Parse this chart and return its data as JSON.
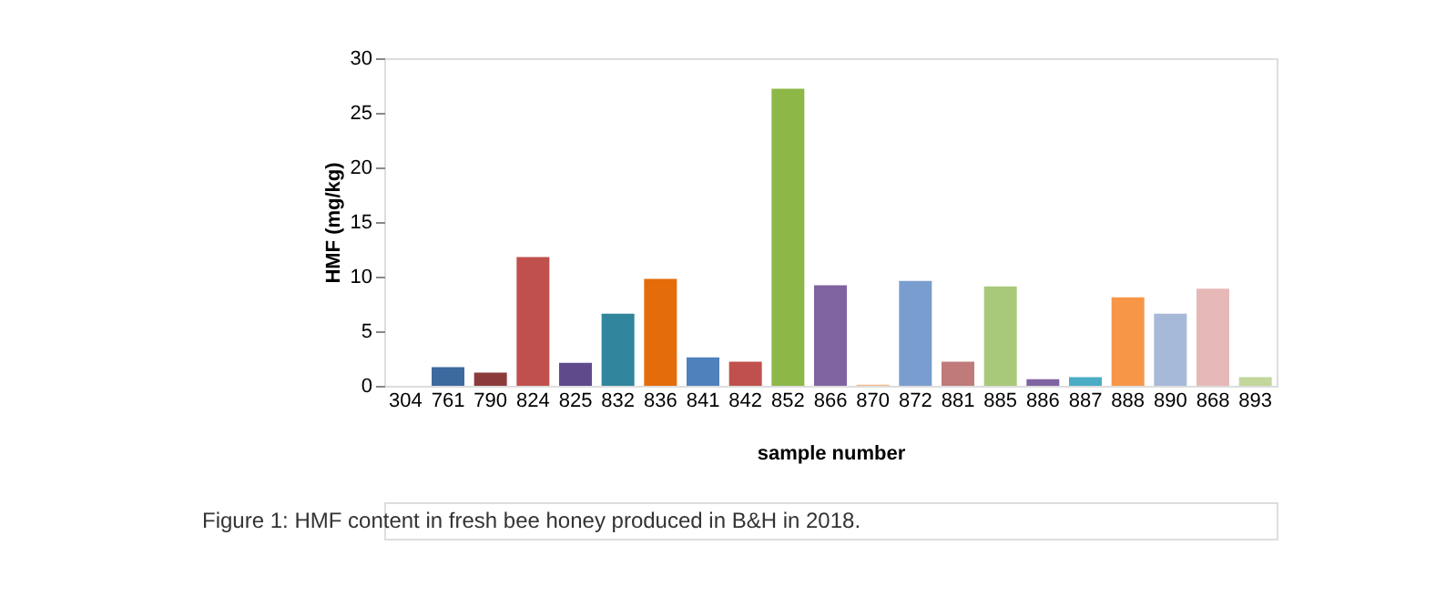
{
  "chart_data": {
    "type": "bar",
    "xlabel": "sample number",
    "ylabel": "HMF  (mg/kg)",
    "categories": [
      "304",
      "761",
      "790",
      "824",
      "825",
      "832",
      "836",
      "841",
      "842",
      "852",
      "866",
      "870",
      "872",
      "881",
      "885",
      "886",
      "887",
      "888",
      "890",
      "868",
      "893"
    ],
    "values": [
      0,
      1.7,
      1.2,
      11.8,
      2.1,
      6.6,
      9.8,
      2.6,
      2.2,
      27.2,
      9.2,
      0.1,
      9.6,
      2.2,
      9.1,
      0.6,
      0.8,
      8.1,
      6.6,
      8.9,
      0.8
    ],
    "colors": [
      "#4f81bd",
      "#3d6a9e",
      "#8c3b3b",
      "#c0504d",
      "#5f4b8b",
      "#31859c",
      "#e46c0a",
      "#4f81bd",
      "#c0504d",
      "#8db848",
      "#7f63a1",
      "#f9b98a",
      "#7a9dcf",
      "#c07a7a",
      "#a9c97a",
      "#8064a2",
      "#4bacc6",
      "#f79646",
      "#a7b9d9",
      "#e6b9b8",
      "#c3d69b"
    ],
    "ylim": [
      0,
      30
    ],
    "yticks": [
      0,
      5,
      10,
      15,
      20,
      25,
      30
    ],
    "grid": false,
    "annotations": [
      "Figure 1: HMF content in fresh bee honey produced in B&H in 2018."
    ]
  }
}
